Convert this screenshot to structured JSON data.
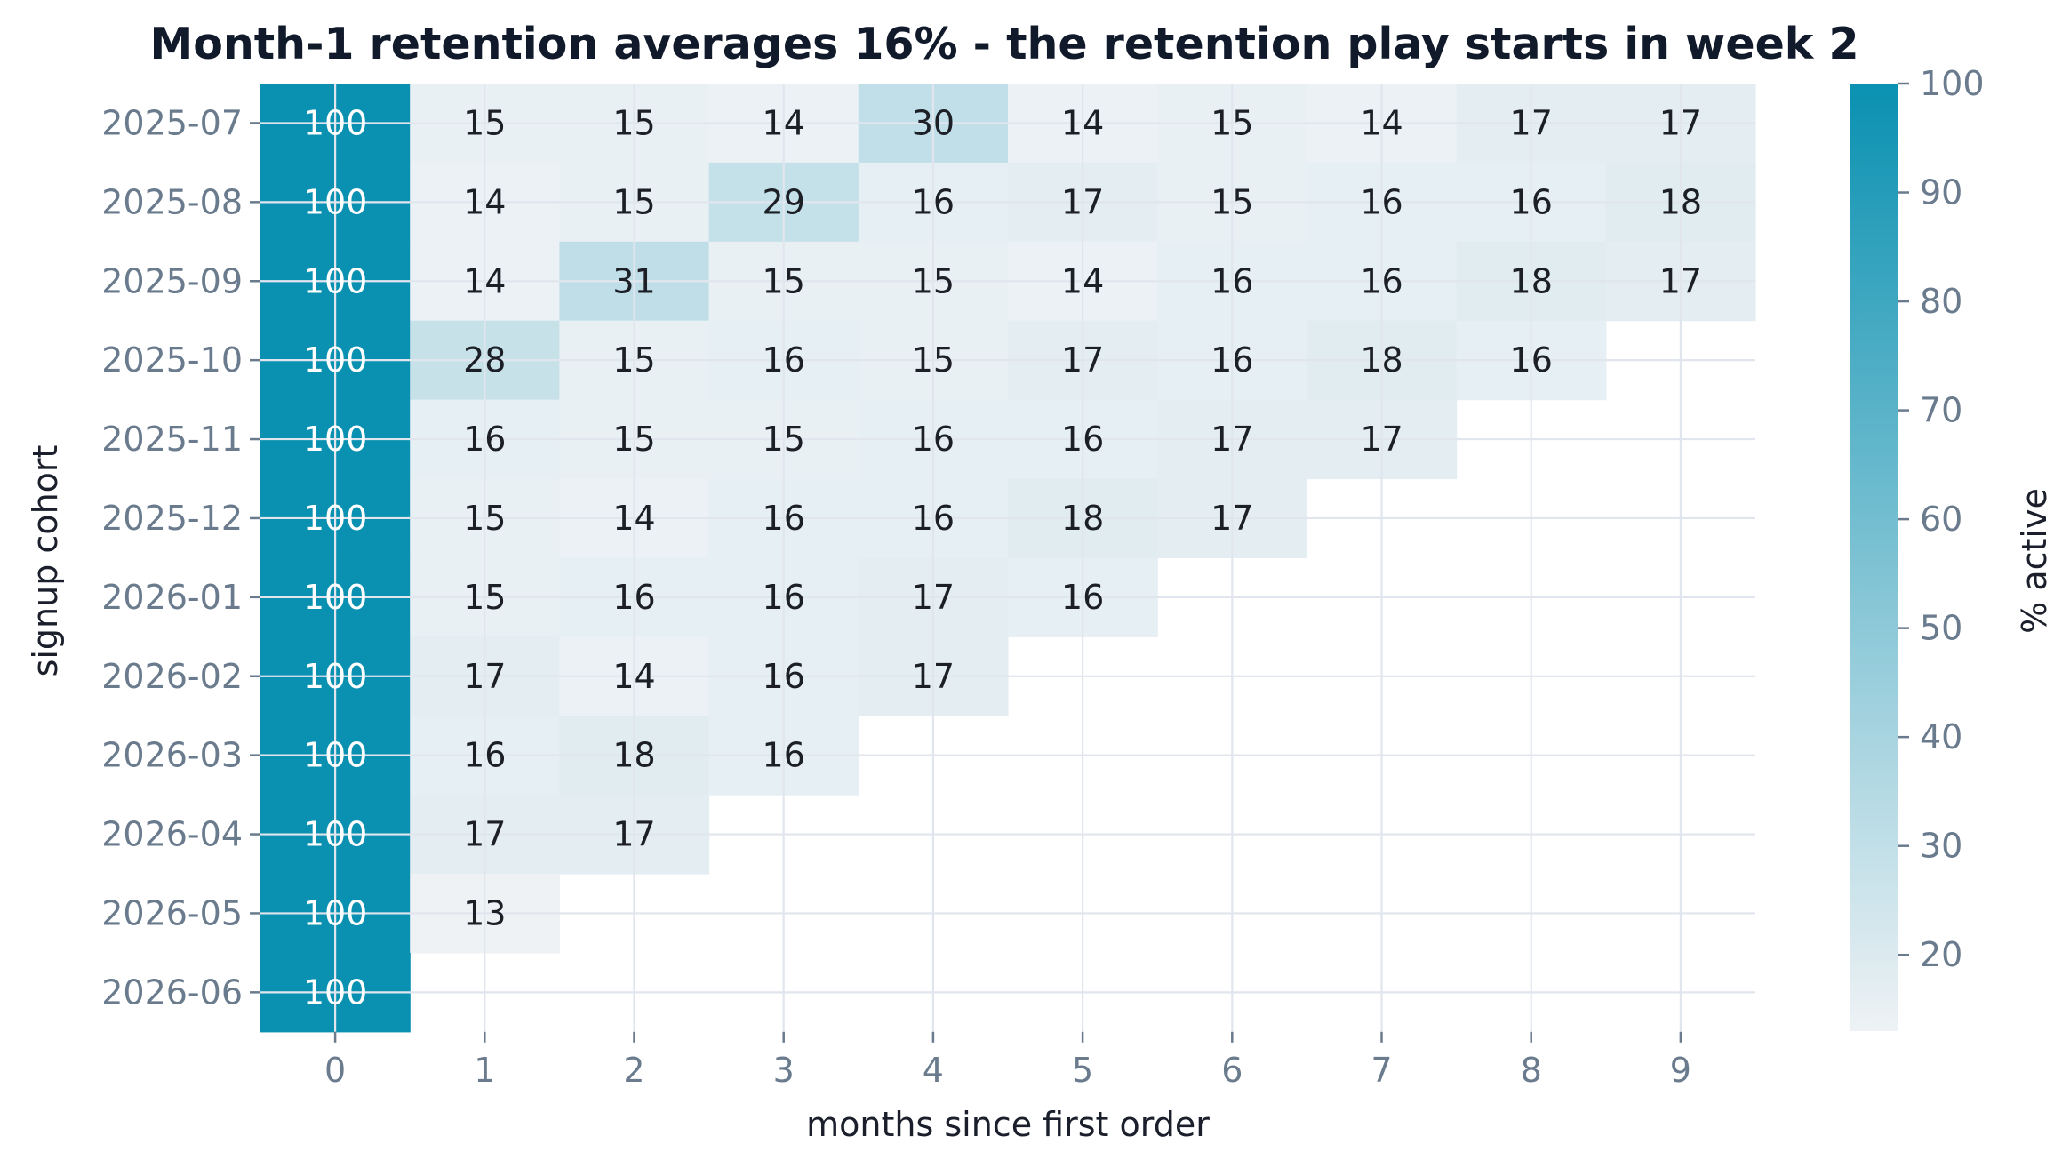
{
  "chart_data": {
    "type": "heatmap",
    "title": "Month-1 retention averages 16% - the retention play starts in week 2",
    "xlabel": "months since first order",
    "ylabel": "signup cohort",
    "colorbar_label": "% active",
    "x_categories": [
      "0",
      "1",
      "2",
      "3",
      "4",
      "5",
      "6",
      "7",
      "8",
      "9"
    ],
    "y_categories": [
      "2025-07",
      "2025-08",
      "2025-09",
      "2025-10",
      "2025-11",
      "2025-12",
      "2026-01",
      "2026-02",
      "2026-03",
      "2026-04",
      "2026-05",
      "2026-06"
    ],
    "values": [
      [
        100,
        15,
        15,
        14,
        30,
        14,
        15,
        14,
        17,
        17
      ],
      [
        100,
        14,
        15,
        29,
        16,
        17,
        15,
        16,
        16,
        18
      ],
      [
        100,
        14,
        31,
        15,
        15,
        14,
        16,
        16,
        18,
        17
      ],
      [
        100,
        28,
        15,
        16,
        15,
        17,
        16,
        18,
        16
      ],
      [
        100,
        16,
        15,
        15,
        16,
        16,
        17,
        17
      ],
      [
        100,
        15,
        14,
        16,
        16,
        18,
        17
      ],
      [
        100,
        15,
        16,
        16,
        17,
        16
      ],
      [
        100,
        17,
        14,
        16,
        17
      ],
      [
        100,
        16,
        18,
        16
      ],
      [
        100,
        17,
        17
      ],
      [
        100,
        13
      ],
      [
        100
      ]
    ],
    "value_range": [
      13,
      100
    ],
    "colorbar_ticks": [
      "20",
      "30",
      "40",
      "50",
      "60",
      "70",
      "80",
      "90",
      "100"
    ],
    "colormap": [
      "#eef2f5",
      "#0a91b1"
    ],
    "grid": true
  }
}
